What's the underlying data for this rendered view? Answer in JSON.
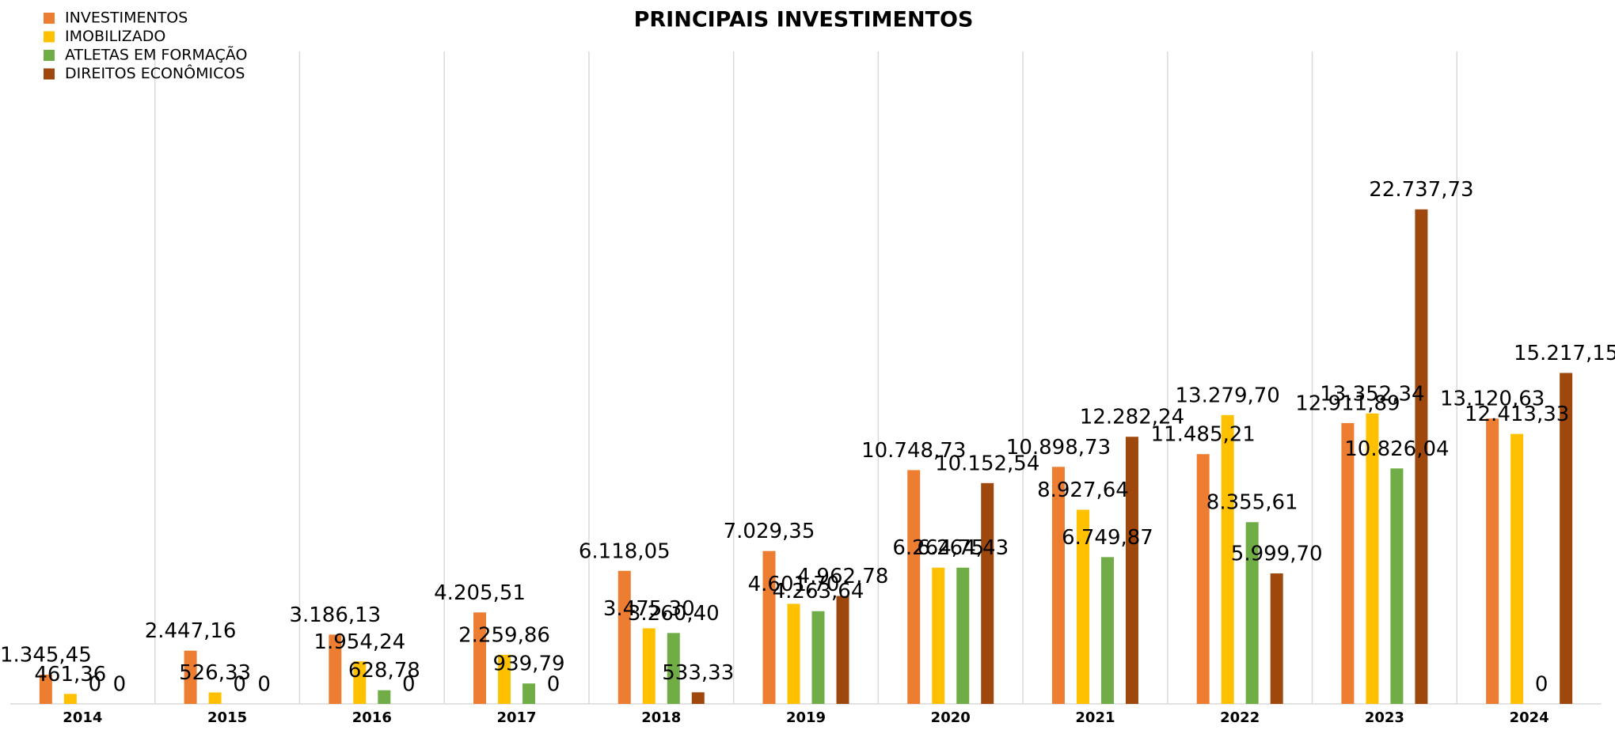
{
  "chart_data": {
    "type": "bar",
    "title": "PRINCIPAIS INVESTIMENTOS",
    "categories": [
      "2014",
      "2015",
      "2016",
      "2017",
      "2018",
      "2019",
      "2020",
      "2021",
      "2022",
      "2023",
      "2024"
    ],
    "ylim": [
      0,
      30000
    ],
    "grid": true,
    "legend": "top-left",
    "series": [
      {
        "name": "INVESTIMENTOS",
        "color": "#ed7d31",
        "values": [
          1345.45,
          2447.16,
          3186.13,
          4205.51,
          6118.05,
          7029.35,
          10748.73,
          10898.73,
          11485.21,
          12911.89,
          13120.63
        ],
        "value_labels": [
          "1.345,45",
          "2.447,16",
          "3.186,13",
          "4.205,51",
          "6.118,05",
          "7.029,35",
          "10.748,73",
          "10.898,73",
          "11.485,21",
          "12.911,89",
          "13.120,63"
        ]
      },
      {
        "name": "IMOBILIZADO",
        "color": "#ffc000",
        "values": [
          461.36,
          526.33,
          1954.24,
          2259.86,
          3475.3,
          4601.7,
          6264.75,
          8927.64,
          13279.7,
          13352.34,
          12413.33
        ],
        "value_labels": [
          "461,36",
          "526,33",
          "1.954,24",
          "2.259,86",
          "3.475,30",
          "4.601,70",
          "6.264,75",
          "8.927,64",
          "13.279,70",
          "13.352,34",
          "12.413,33"
        ]
      },
      {
        "name": "ATLETAS EM FORMAÇÃO",
        "color": "#70ad47",
        "values": [
          0,
          0,
          628.78,
          939.79,
          3260.4,
          4263.64,
          6264.43,
          6749.87,
          8355.61,
          10826.04,
          0
        ],
        "value_labels": [
          "0",
          "0",
          "628,78",
          "939,79",
          "3.260,40",
          "4.263,64",
          "6.264,43",
          "6.749,87",
          "8.355,61",
          "10.826,04",
          "0"
        ]
      },
      {
        "name": "DIREITOS ECONÔMICOS",
        "color": "#9e480e",
        "values": [
          0,
          0,
          0,
          0,
          533.33,
          4962.78,
          10152.54,
          12282.24,
          5999.7,
          22737.73,
          15217.15
        ],
        "value_labels": [
          "0",
          "0",
          "0",
          "0",
          "533,33",
          "4.962,78",
          "10.152,54",
          "12.282,24",
          "5.999,70",
          "22.737,73",
          "15.217,15"
        ]
      }
    ]
  }
}
